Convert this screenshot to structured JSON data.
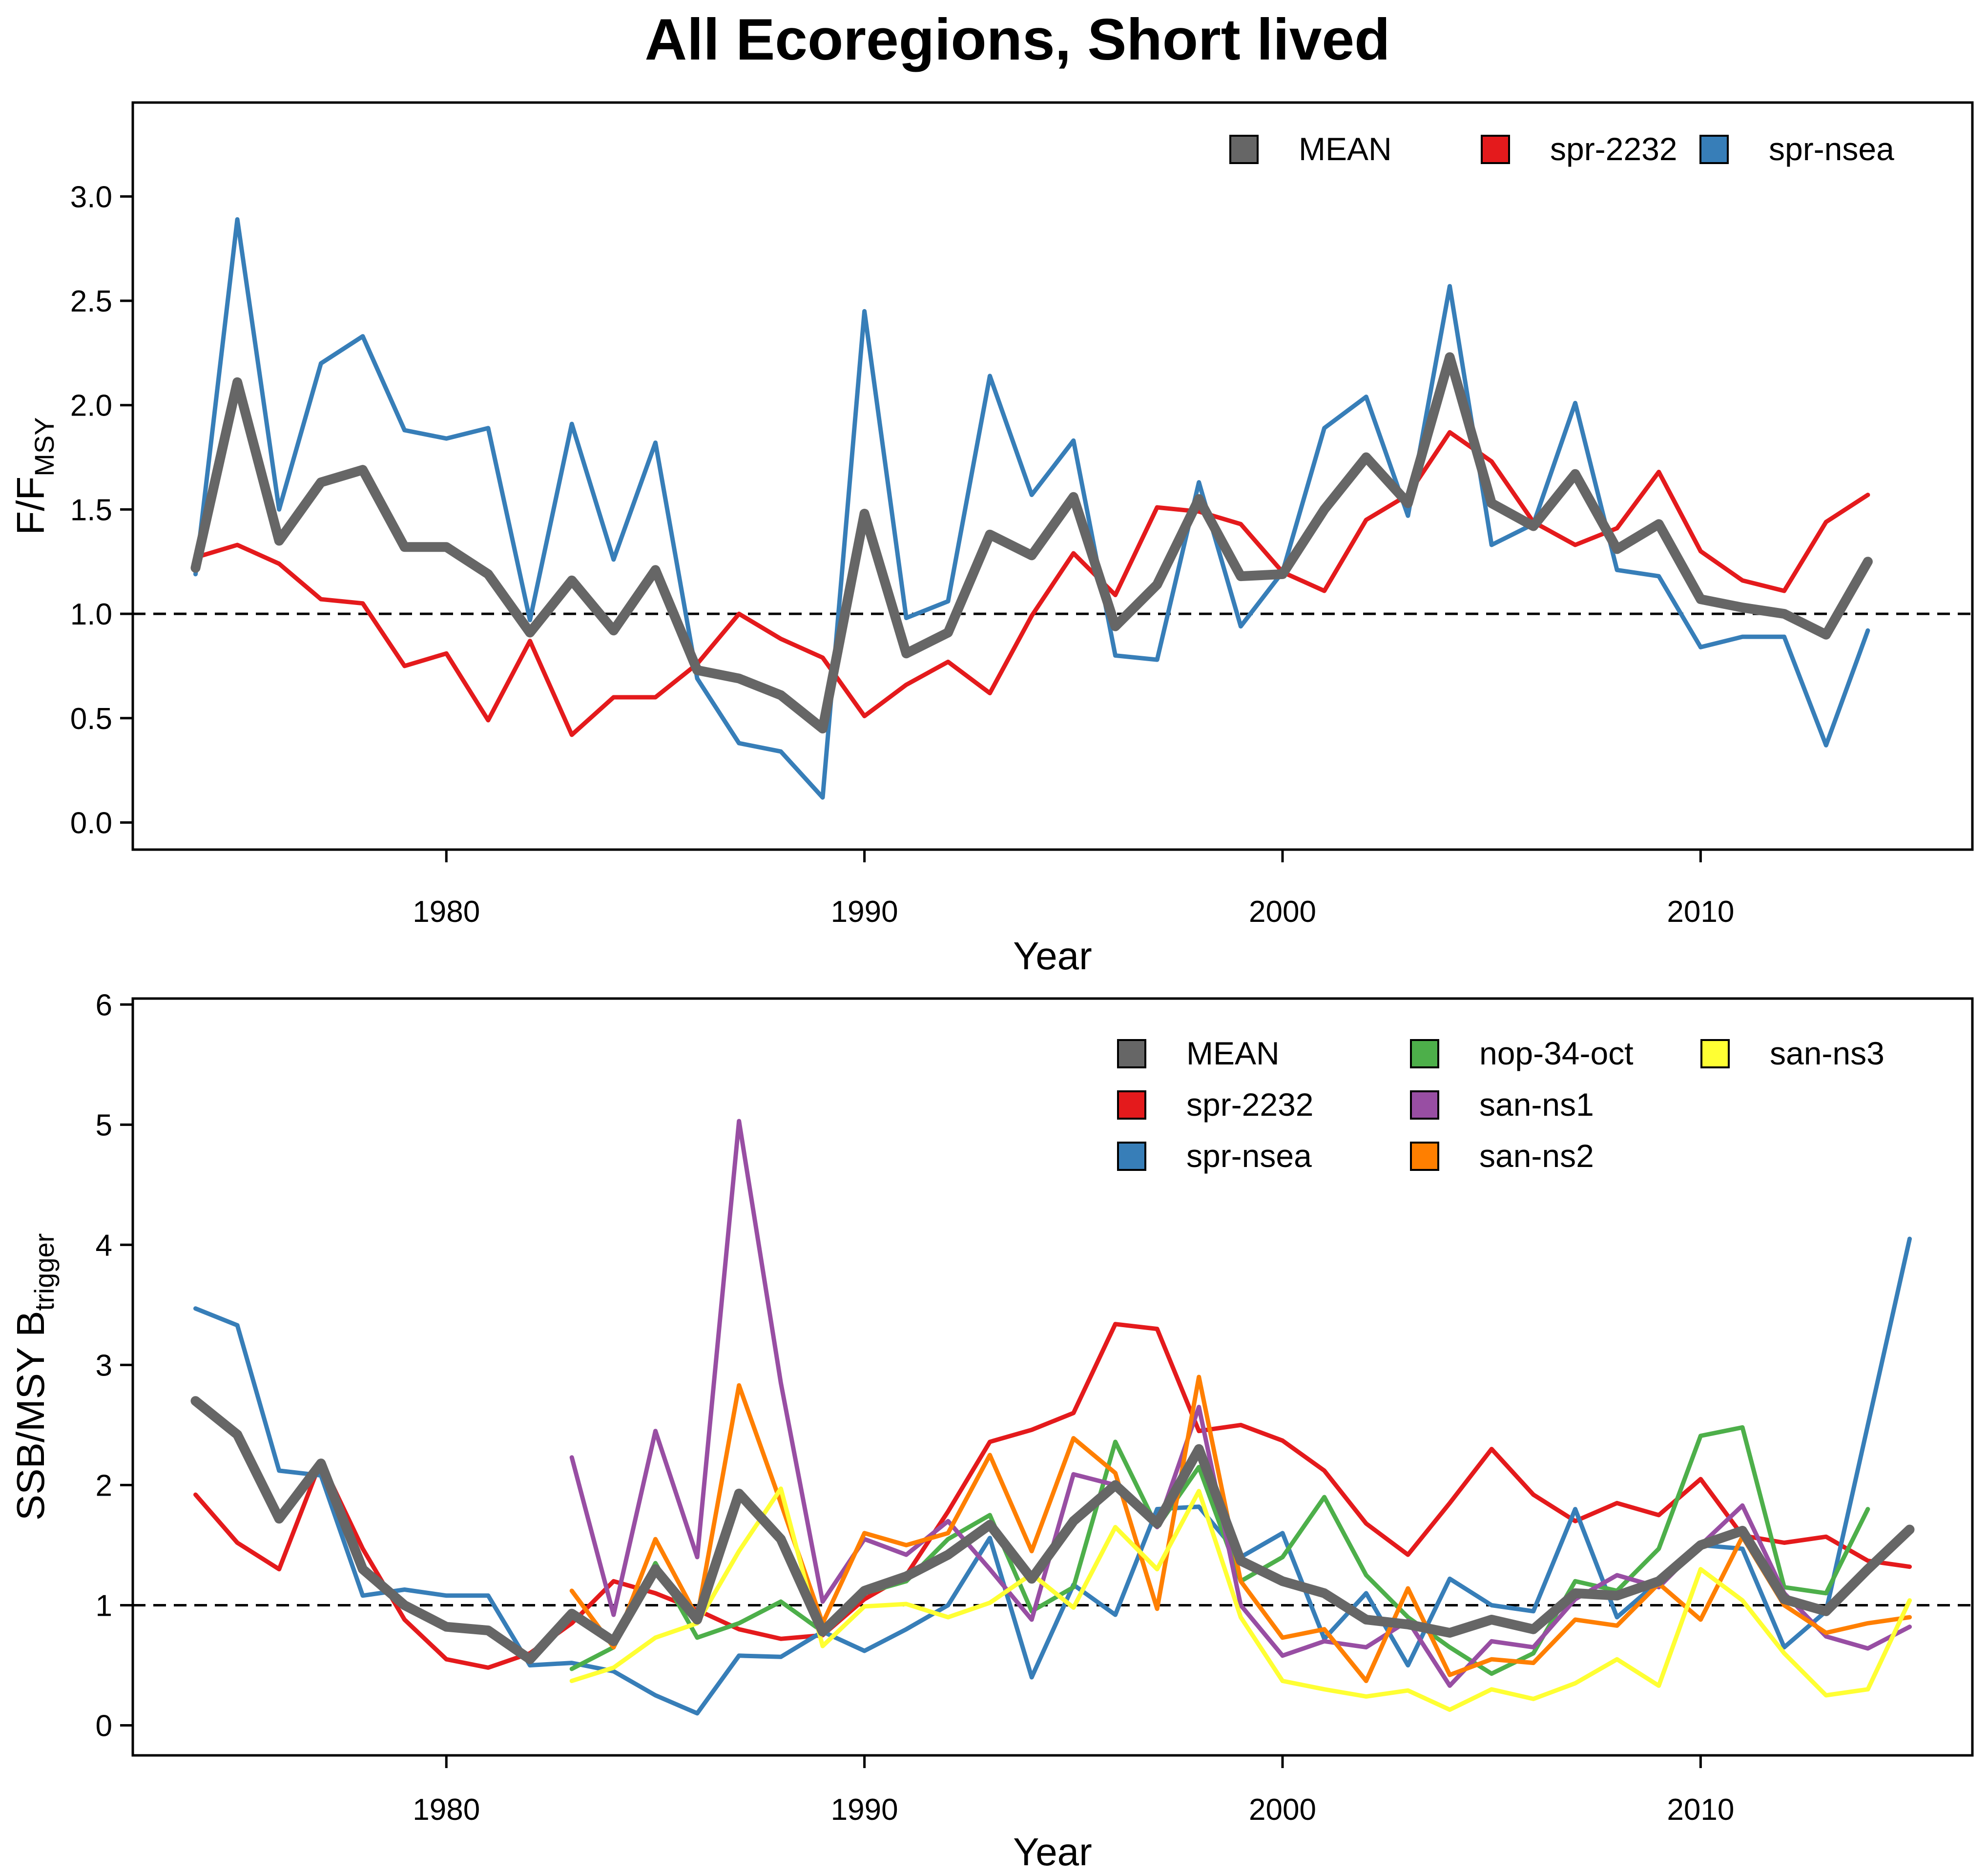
{
  "figure": {
    "title": "All Ecoregions, Short lived"
  },
  "chart_data": [
    {
      "type": "line",
      "xlabel": "Year",
      "ylabel": {
        "main": "F/F",
        "sub": "MSY"
      },
      "xlim": [
        1972.5,
        2016.5
      ],
      "ylim": [
        -0.13,
        3.45
      ],
      "xticks": [
        1980,
        1990,
        2000,
        2010
      ],
      "yticks": [
        0.0,
        0.5,
        1.0,
        1.5,
        2.0,
        2.5,
        3.0
      ],
      "ytick_labels": [
        "0.0",
        "0.5",
        "1.0",
        "1.5",
        "2.0",
        "2.5",
        "3.0"
      ],
      "reference_line": 1.0,
      "legend": {
        "placement": "top-right",
        "columns": 3
      },
      "grid": false,
      "series": [
        {
          "name": "MEAN",
          "color": "#666666",
          "width": 20,
          "x": [
            1974,
            1975,
            1976,
            1977,
            1978,
            1979,
            1980,
            1981,
            1982,
            1983,
            1984,
            1985,
            1986,
            1987,
            1988,
            1989,
            1990,
            1991,
            1992,
            1993,
            1994,
            1995,
            1996,
            1997,
            1998,
            1999,
            2000,
            2001,
            2002,
            2003,
            2004,
            2005,
            2006,
            2007,
            2008,
            2009,
            2010,
            2011,
            2012,
            2013,
            2014
          ],
          "y": [
            1.22,
            2.11,
            1.35,
            1.63,
            1.69,
            1.32,
            1.32,
            1.19,
            0.91,
            1.16,
            0.92,
            1.21,
            0.73,
            0.69,
            0.61,
            0.45,
            1.48,
            0.81,
            0.91,
            1.38,
            1.28,
            1.56,
            0.94,
            1.14,
            1.55,
            1.18,
            1.19,
            1.5,
            1.75,
            1.53,
            2.23,
            1.53,
            1.42,
            1.67,
            1.31,
            1.43,
            1.07,
            1.03,
            1.0,
            0.9,
            1.25
          ]
        },
        {
          "name": "spr-2232",
          "color": "#E41A1C",
          "width": 9,
          "x": [
            1974,
            1975,
            1976,
            1977,
            1978,
            1979,
            1980,
            1981,
            1982,
            1983,
            1984,
            1985,
            1986,
            1987,
            1988,
            1989,
            1990,
            1991,
            1992,
            1993,
            1994,
            1995,
            1996,
            1997,
            1998,
            1999,
            2000,
            2001,
            2002,
            2003,
            2004,
            2005,
            2006,
            2007,
            2008,
            2009,
            2010,
            2011,
            2012,
            2013,
            2014
          ],
          "y": [
            1.27,
            1.33,
            1.24,
            1.07,
            1.05,
            0.75,
            0.81,
            0.49,
            0.87,
            0.42,
            0.6,
            0.6,
            0.76,
            1.0,
            0.88,
            0.79,
            0.51,
            0.66,
            0.77,
            0.62,
            0.99,
            1.29,
            1.09,
            1.51,
            1.49,
            1.43,
            1.2,
            1.11,
            1.45,
            1.57,
            1.87,
            1.73,
            1.44,
            1.33,
            1.41,
            1.68,
            1.3,
            1.16,
            1.11,
            1.44,
            1.57
          ]
        },
        {
          "name": "spr-nsea",
          "color": "#377EB8",
          "width": 9,
          "x": [
            1974,
            1975,
            1976,
            1977,
            1978,
            1979,
            1980,
            1981,
            1982,
            1983,
            1984,
            1985,
            1986,
            1987,
            1988,
            1989,
            1990,
            1991,
            1992,
            1993,
            1994,
            1995,
            1996,
            1997,
            1998,
            1999,
            2000,
            2001,
            2002,
            2003,
            2004,
            2005,
            2006,
            2007,
            2008,
            2009,
            2010,
            2011,
            2012,
            2013,
            2014
          ],
          "y": [
            1.19,
            2.89,
            1.5,
            2.2,
            2.33,
            1.88,
            1.84,
            1.89,
            0.97,
            1.91,
            1.26,
            1.82,
            0.69,
            0.38,
            0.34,
            0.12,
            2.45,
            0.98,
            1.06,
            2.14,
            1.57,
            1.83,
            0.8,
            0.78,
            1.63,
            0.94,
            1.2,
            1.89,
            2.04,
            1.47,
            2.57,
            1.33,
            1.43,
            2.01,
            1.21,
            1.18,
            0.84,
            0.89,
            0.89,
            0.37,
            0.92
          ]
        }
      ]
    },
    {
      "type": "line",
      "xlabel": "Year",
      "ylabel": {
        "main": "SSB/MSY B",
        "sub": "trigger"
      },
      "xlim": [
        1972.5,
        2016.5
      ],
      "ylim": [
        -0.25,
        6.05
      ],
      "xticks": [
        1980,
        1990,
        2000,
        2010
      ],
      "yticks": [
        0,
        1,
        2,
        3,
        4,
        5,
        6
      ],
      "ytick_labels": [
        "0",
        "1",
        "2",
        "3",
        "4",
        "5",
        "6"
      ],
      "reference_line": 1.0,
      "legend": {
        "placement": "top-right",
        "columns": 3
      },
      "grid": false,
      "series": [
        {
          "name": "MEAN",
          "color": "#666666",
          "width": 20,
          "x": [
            1974,
            1975,
            1976,
            1977,
            1978,
            1979,
            1980,
            1981,
            1982,
            1983,
            1984,
            1985,
            1986,
            1987,
            1988,
            1989,
            1990,
            1991,
            1992,
            1993,
            1994,
            1995,
            1996,
            1997,
            1998,
            1999,
            2000,
            2001,
            2002,
            2003,
            2004,
            2005,
            2006,
            2007,
            2008,
            2009,
            2010,
            2011,
            2012,
            2013,
            2014,
            2015
          ],
          "y": [
            2.7,
            2.42,
            1.72,
            2.18,
            1.3,
            1.0,
            0.82,
            0.79,
            0.55,
            0.93,
            0.7,
            1.3,
            0.88,
            1.93,
            1.55,
            0.78,
            1.12,
            1.24,
            1.42,
            1.67,
            1.22,
            1.7,
            2.0,
            1.68,
            2.3,
            1.37,
            1.2,
            1.1,
            0.88,
            0.84,
            0.77,
            0.88,
            0.8,
            1.1,
            1.08,
            1.2,
            1.5,
            1.62,
            1.05,
            0.95,
            1.3,
            1.63
          ]
        },
        {
          "name": "spr-2232",
          "color": "#E41A1C",
          "width": 9,
          "x": [
            1974,
            1975,
            1976,
            1977,
            1978,
            1979,
            1980,
            1981,
            1982,
            1983,
            1984,
            1985,
            1986,
            1987,
            1988,
            1989,
            1990,
            1991,
            1992,
            1993,
            1994,
            1995,
            1996,
            1997,
            1998,
            1999,
            2000,
            2001,
            2002,
            2003,
            2004,
            2005,
            2006,
            2007,
            2008,
            2009,
            2010,
            2011,
            2012,
            2013,
            2014,
            2015
          ],
          "y": [
            1.92,
            1.52,
            1.3,
            2.2,
            1.47,
            0.88,
            0.55,
            0.48,
            0.6,
            0.85,
            1.2,
            1.1,
            0.96,
            0.8,
            0.72,
            0.75,
            1.05,
            1.25,
            1.78,
            2.36,
            2.46,
            2.6,
            3.34,
            3.3,
            2.45,
            2.5,
            2.37,
            2.12,
            1.68,
            1.42,
            1.85,
            2.3,
            1.92,
            1.7,
            1.85,
            1.75,
            2.05,
            1.58,
            1.52,
            1.57,
            1.37,
            1.32
          ]
        },
        {
          "name": "spr-nsea",
          "color": "#377EB8",
          "width": 9,
          "x": [
            1974,
            1975,
            1976,
            1977,
            1978,
            1979,
            1980,
            1981,
            1982,
            1983,
            1984,
            1985,
            1986,
            1987,
            1988,
            1989,
            1990,
            1991,
            1992,
            1993,
            1994,
            1995,
            1996,
            1997,
            1998,
            1999,
            2000,
            2001,
            2002,
            2003,
            2004,
            2005,
            2006,
            2007,
            2008,
            2009,
            2010,
            2011,
            2012,
            2013,
            2014,
            2015
          ],
          "y": [
            3.47,
            3.33,
            2.12,
            2.08,
            1.08,
            1.13,
            1.08,
            1.08,
            0.5,
            0.52,
            0.45,
            0.25,
            0.1,
            0.58,
            0.57,
            0.78,
            0.62,
            0.8,
            1.0,
            1.56,
            0.4,
            1.17,
            0.92,
            1.8,
            1.82,
            1.4,
            1.6,
            0.72,
            1.1,
            0.5,
            1.22,
            1.0,
            0.95,
            1.8,
            0.9,
            1.2,
            1.5,
            1.47,
            0.65,
            0.95,
            2.5,
            4.05
          ]
        },
        {
          "name": "nop-34-oct",
          "color": "#4DAF4A",
          "width": 9,
          "x": [
            1983,
            1984,
            1985,
            1986,
            1987,
            1988,
            1989,
            1990,
            1991,
            1992,
            1993,
            1994,
            1995,
            1996,
            1997,
            1998,
            1999,
            2000,
            2001,
            2002,
            2003,
            2004,
            2005,
            2006,
            2007,
            2008,
            2009,
            2010,
            2011,
            2012,
            2013,
            2014
          ],
          "y": [
            0.47,
            0.65,
            1.35,
            0.73,
            0.85,
            1.03,
            0.78,
            1.1,
            1.2,
            1.55,
            1.75,
            0.95,
            1.15,
            2.36,
            1.65,
            2.15,
            1.2,
            1.4,
            1.9,
            1.25,
            0.9,
            0.65,
            0.43,
            0.6,
            1.2,
            1.12,
            1.47,
            2.41,
            2.48,
            1.15,
            1.1,
            1.8
          ]
        },
        {
          "name": "san-ns1",
          "color": "#984EA3",
          "width": 9,
          "x": [
            1983,
            1984,
            1985,
            1986,
            1987,
            1988,
            1989,
            1990,
            1991,
            1992,
            1993,
            1994,
            1995,
            1996,
            1997,
            1998,
            1999,
            2000,
            2001,
            2002,
            2003,
            2004,
            2005,
            2006,
            2007,
            2008,
            2009,
            2010,
            2011,
            2012,
            2013,
            2014,
            2015
          ],
          "y": [
            2.23,
            0.92,
            2.45,
            1.4,
            5.03,
            2.85,
            1.03,
            1.55,
            1.42,
            1.7,
            1.3,
            0.88,
            2.09,
            2.0,
            1.65,
            2.65,
            1.0,
            0.58,
            0.7,
            0.65,
            0.87,
            0.33,
            0.7,
            0.65,
            1.05,
            1.25,
            1.15,
            1.5,
            1.83,
            1.1,
            0.74,
            0.64,
            0.82
          ]
        },
        {
          "name": "san-ns2",
          "color": "#FF7F00",
          "width": 9,
          "x": [
            1983,
            1984,
            1985,
            1986,
            1987,
            1988,
            1989,
            1990,
            1991,
            1992,
            1993,
            1994,
            1995,
            1996,
            1997,
            1998,
            1999,
            2000,
            2001,
            2002,
            2003,
            2004,
            2005,
            2006,
            2007,
            2008,
            2009,
            2010,
            2011,
            2012,
            2013,
            2014,
            2015
          ],
          "y": [
            1.12,
            0.65,
            1.55,
            0.9,
            2.83,
            1.85,
            0.85,
            1.6,
            1.5,
            1.6,
            2.25,
            1.45,
            2.39,
            2.1,
            0.97,
            2.9,
            1.2,
            0.73,
            0.8,
            0.37,
            1.14,
            0.42,
            0.55,
            0.52,
            0.88,
            0.83,
            1.18,
            0.88,
            1.57,
            1.0,
            0.77,
            0.85,
            0.9
          ]
        },
        {
          "name": "san-ns3",
          "color": "#FFFF33",
          "width": 9,
          "x": [
            1983,
            1984,
            1985,
            1986,
            1987,
            1988,
            1989,
            1990,
            1991,
            1992,
            1993,
            1994,
            1995,
            1996,
            1997,
            1998,
            1999,
            2000,
            2001,
            2002,
            2003,
            2004,
            2005,
            2006,
            2007,
            2008,
            2009,
            2010,
            2011,
            2012,
            2013,
            2014,
            2015
          ],
          "y": [
            0.37,
            0.48,
            0.73,
            0.85,
            1.45,
            1.97,
            0.66,
            0.99,
            1.01,
            0.9,
            1.02,
            1.26,
            0.98,
            1.65,
            1.3,
            1.95,
            0.9,
            0.37,
            0.3,
            0.24,
            0.29,
            0.13,
            0.3,
            0.22,
            0.35,
            0.55,
            0.33,
            1.3,
            1.04,
            0.6,
            0.25,
            0.3,
            1.04
          ]
        }
      ]
    }
  ]
}
